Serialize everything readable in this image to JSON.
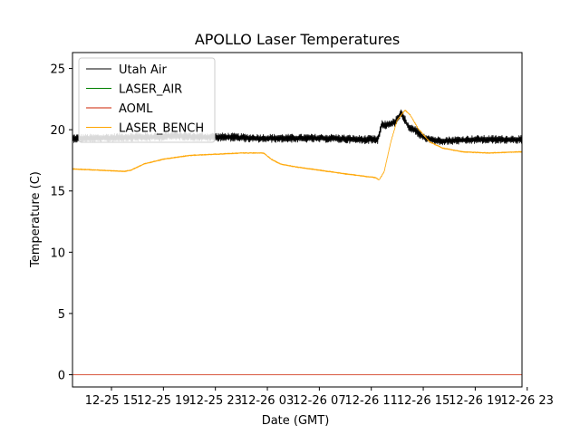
{
  "chart_data": {
    "type": "line",
    "title": "APOLLO Laser Temperatures",
    "xlabel": "Date (GMT)",
    "ylabel": "Temperature (C)",
    "xlim": [
      12.0,
      46.6
    ],
    "ylim": [
      -1.0,
      26.3
    ],
    "x_unit": "hours since 2023-12-25 00:00 GMT",
    "x_ticks": [
      {
        "value": 15,
        "label": "12-25 15"
      },
      {
        "value": 19,
        "label": "12-25 19"
      },
      {
        "value": 23,
        "label": "12-25 23"
      },
      {
        "value": 27,
        "label": "12-26 03"
      },
      {
        "value": 31,
        "label": "12-26 07"
      },
      {
        "value": 35,
        "label": "12-26 11"
      },
      {
        "value": 39,
        "label": "12-26 15"
      },
      {
        "value": 43,
        "label": "12-26 19"
      },
      {
        "value": 47,
        "label": "12-26 23"
      }
    ],
    "y_ticks": [
      {
        "value": 0,
        "label": "0"
      },
      {
        "value": 5,
        "label": "5"
      },
      {
        "value": 10,
        "label": "10"
      },
      {
        "value": 15,
        "label": "15"
      },
      {
        "value": 20,
        "label": "20"
      },
      {
        "value": 25,
        "label": "25"
      }
    ],
    "grid": false,
    "legend_position": "top-left",
    "series": [
      {
        "name": "Utah Air",
        "color": "#000000",
        "noise": 0.35,
        "x": [
          12.0,
          14.0,
          16.0,
          18.0,
          20.0,
          22.0,
          24.0,
          26.0,
          28.0,
          30.0,
          32.0,
          34.0,
          35.5,
          35.8,
          36.2,
          36.8,
          37.3,
          37.6,
          37.9,
          38.3,
          39.0,
          40.0,
          41.0,
          43.0,
          45.0,
          46.6
        ],
        "y": [
          19.3,
          19.3,
          19.4,
          19.4,
          19.5,
          19.4,
          19.4,
          19.3,
          19.3,
          19.3,
          19.3,
          19.2,
          19.2,
          20.4,
          20.4,
          20.6,
          21.3,
          20.8,
          20.1,
          20.0,
          19.4,
          19.1,
          19.1,
          19.2,
          19.2,
          19.2
        ]
      },
      {
        "name": "LASER_AIR",
        "color": "#008000",
        "noise": 0,
        "x": [],
        "y": []
      },
      {
        "name": "AOML",
        "color": "#cc2200",
        "noise": 0,
        "x": [
          12.0,
          46.6
        ],
        "y": [
          0.0,
          0.0
        ]
      },
      {
        "name": "LASER_BENCH",
        "color": "#ffa500",
        "noise": 0.05,
        "x": [
          12.0,
          14.0,
          16.0,
          16.5,
          17.5,
          19.0,
          21.0,
          23.0,
          25.0,
          26.7,
          27.3,
          28.0,
          29.0,
          31.0,
          33.0,
          34.5,
          35.3,
          35.6,
          36.0,
          36.5,
          37.0,
          37.6,
          38.0,
          38.6,
          39.5,
          40.5,
          42.0,
          44.0,
          46.6
        ],
        "y": [
          16.8,
          16.7,
          16.6,
          16.7,
          17.2,
          17.6,
          17.9,
          18.0,
          18.1,
          18.1,
          17.6,
          17.2,
          17.0,
          16.7,
          16.4,
          16.2,
          16.1,
          15.9,
          16.6,
          19.0,
          20.8,
          21.6,
          21.2,
          20.1,
          19.0,
          18.5,
          18.2,
          18.1,
          18.2
        ]
      }
    ]
  }
}
